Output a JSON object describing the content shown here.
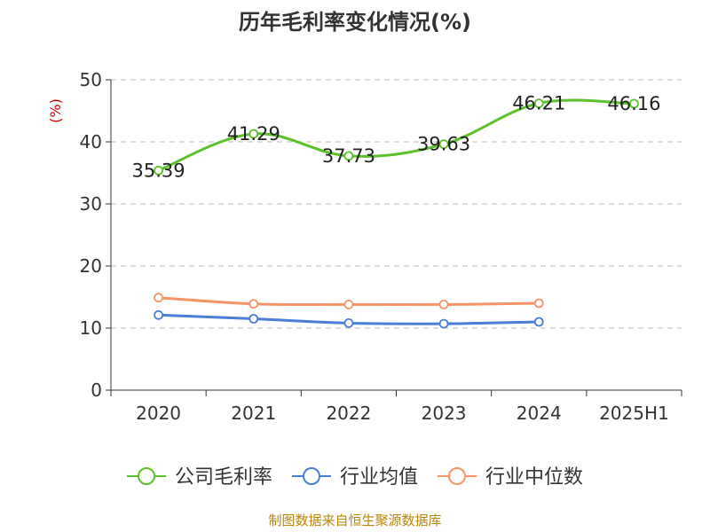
{
  "chart_data": {
    "type": "line",
    "title": "历年毛利率变化情况(%)",
    "ylabel": "(%)",
    "xlabel": "",
    "categories": [
      "2020",
      "2021",
      "2022",
      "2023",
      "2024",
      "2025H1"
    ],
    "yticks": [
      "0",
      "10",
      "20",
      "30",
      "40",
      "50"
    ],
    "ylim": [
      0,
      50
    ],
    "grid": true,
    "legend_position": "bottom",
    "series": [
      {
        "name": "公司毛利率",
        "color": "#5cc22a",
        "values": [
          35.39,
          41.29,
          37.73,
          39.63,
          46.21,
          46.16
        ],
        "labels": [
          "35.39",
          "41.29",
          "37.73",
          "39.63",
          "46.21",
          "46.16"
        ]
      },
      {
        "name": "行业均值",
        "color": "#4a7fd8",
        "values": [
          12.1,
          11.5,
          10.8,
          10.7,
          11.0,
          null
        ],
        "labels": []
      },
      {
        "name": "行业中位数",
        "color": "#f79366",
        "values": [
          14.9,
          13.9,
          13.8,
          13.8,
          14.0,
          null
        ],
        "labels": []
      }
    ]
  },
  "source": "制图数据来自恒生聚源数据库"
}
